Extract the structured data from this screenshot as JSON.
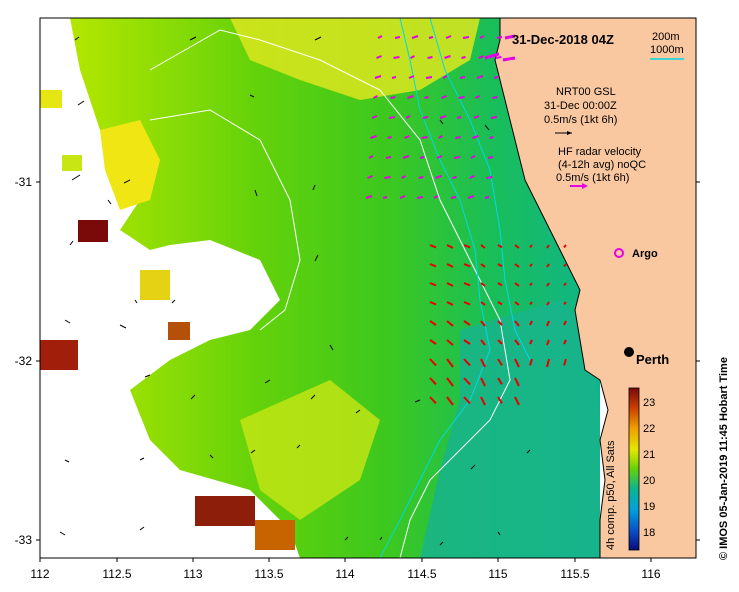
{
  "map": {
    "date_title": "31-Dec-2018 04Z",
    "x_ticks": [
      "112",
      "112.5",
      "113",
      "113.5",
      "114",
      "114.5",
      "115",
      "115.5",
      "116"
    ],
    "y_ticks": [
      "-31",
      "-32",
      "-33"
    ],
    "depth_contours": {
      "line1": "200m",
      "line2": "1000m"
    },
    "model_legend": {
      "line1": "NRT00 GSL",
      "line2": "31-Dec 00:00Z",
      "line3": "0.5m/s (1kt 6h)"
    },
    "radar_legend": {
      "line1": "HF radar velocity",
      "line2": "(4-12h avg) noQC",
      "line3": "0.5m/s (1kt 6h)"
    },
    "argo_label": "Argo",
    "city_label": "Perth",
    "colorbar": {
      "ticks": [
        "23",
        "22",
        "21",
        "20",
        "19",
        "18"
      ],
      "caption": "4h comp. p50, All Sats"
    },
    "credit": "© IMOS 05-Jan-2019 11:45 Hobart Time",
    "colors": {
      "land": "#fac8a0",
      "radar_arrow": "#e60000",
      "gsl_arrow": "#e600e6",
      "contour_shelf": "#00d8e6",
      "contour_deep": "#ffffff"
    }
  }
}
